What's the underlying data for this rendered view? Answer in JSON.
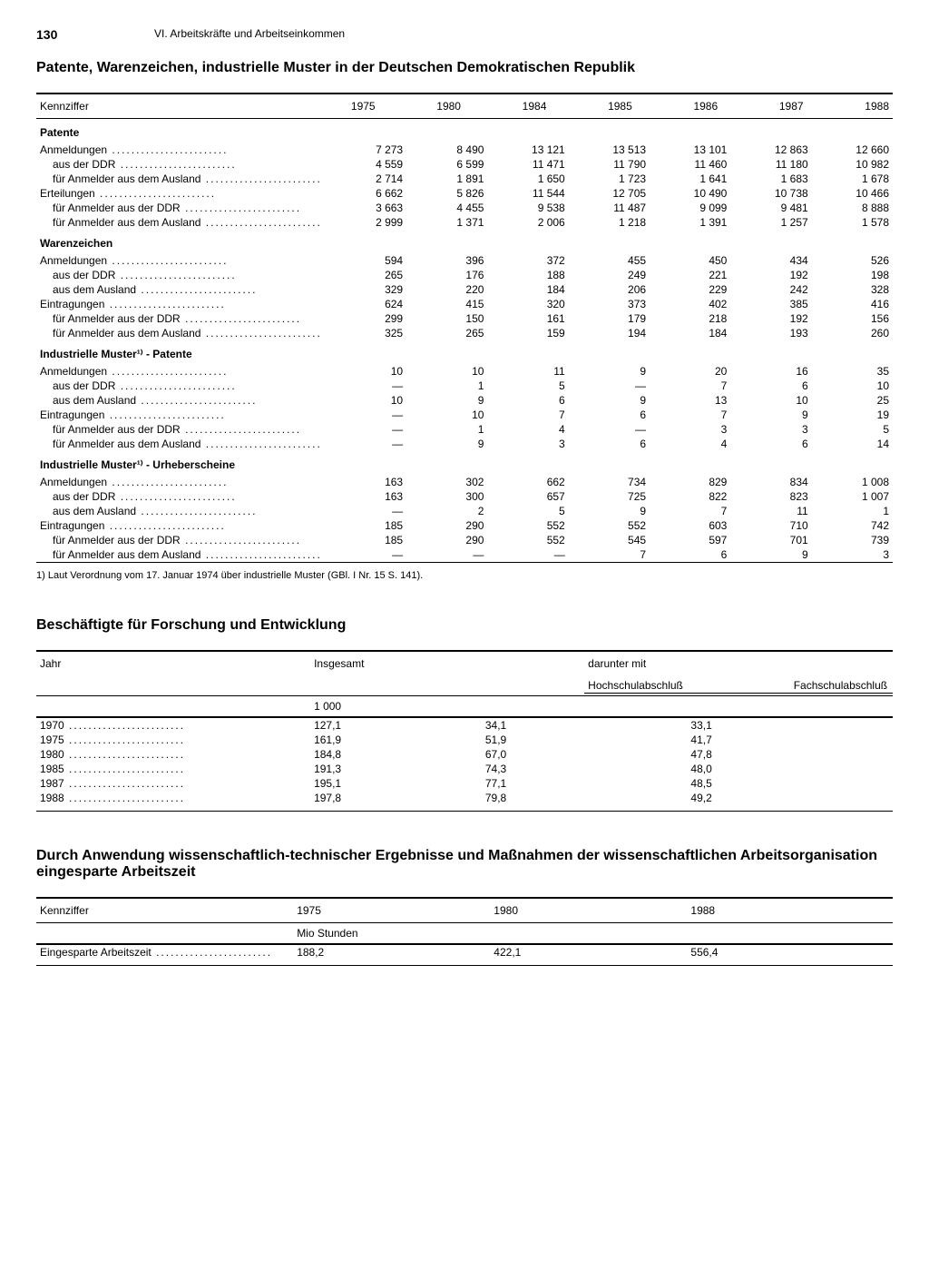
{
  "page": {
    "number": "130",
    "section": "VI. Arbeitskräfte und Arbeitseinkommen"
  },
  "table1": {
    "title": "Patente, Warenzeichen, industrielle Muster in der Deutschen Demokratischen Republik",
    "colhead": "Kennziffer",
    "years": [
      "1975",
      "1980",
      "1984",
      "1985",
      "1986",
      "1987",
      "1988"
    ],
    "groups": [
      {
        "head": "Patente",
        "rows": [
          {
            "l": "Anmeldungen",
            "v": [
              "7 273",
              "8 490",
              "13 121",
              "13 513",
              "13 101",
              "12 863",
              "12 660"
            ]
          },
          {
            "l": "aus der DDR",
            "i": 1,
            "v": [
              "4 559",
              "6 599",
              "11 471",
              "11 790",
              "11 460",
              "11 180",
              "10 982"
            ]
          },
          {
            "l": "für Anmelder aus dem Ausland",
            "i": 1,
            "v": [
              "2 714",
              "1 891",
              "1 650",
              "1 723",
              "1 641",
              "1 683",
              "1 678"
            ]
          },
          {
            "l": "Erteilungen",
            "v": [
              "6 662",
              "5 826",
              "11 544",
              "12 705",
              "10 490",
              "10 738",
              "10 466"
            ]
          },
          {
            "l": "für Anmelder aus der DDR",
            "i": 1,
            "v": [
              "3 663",
              "4 455",
              "9 538",
              "11 487",
              "9 099",
              "9 481",
              "8 888"
            ]
          },
          {
            "l": "für Anmelder aus dem Ausland",
            "i": 1,
            "v": [
              "2 999",
              "1 371",
              "2 006",
              "1 218",
              "1 391",
              "1 257",
              "1 578"
            ]
          }
        ]
      },
      {
        "head": "Warenzeichen",
        "rows": [
          {
            "l": "Anmeldungen",
            "v": [
              "594",
              "396",
              "372",
              "455",
              "450",
              "434",
              "526"
            ]
          },
          {
            "l": "aus der DDR",
            "i": 1,
            "v": [
              "265",
              "176",
              "188",
              "249",
              "221",
              "192",
              "198"
            ]
          },
          {
            "l": "aus dem Ausland",
            "i": 1,
            "v": [
              "329",
              "220",
              "184",
              "206",
              "229",
              "242",
              "328"
            ]
          },
          {
            "l": "Eintragungen",
            "v": [
              "624",
              "415",
              "320",
              "373",
              "402",
              "385",
              "416"
            ]
          },
          {
            "l": "für Anmelder aus der DDR",
            "i": 1,
            "v": [
              "299",
              "150",
              "161",
              "179",
              "218",
              "192",
              "156"
            ]
          },
          {
            "l": "für Anmelder aus dem Ausland",
            "i": 1,
            "v": [
              "325",
              "265",
              "159",
              "194",
              "184",
              "193",
              "260"
            ]
          }
        ]
      },
      {
        "head": "Industrielle Muster¹⁾ - Patente",
        "rows": [
          {
            "l": "Anmeldungen",
            "v": [
              "10",
              "10",
              "11",
              "9",
              "20",
              "16",
              "35"
            ]
          },
          {
            "l": "aus der DDR",
            "i": 1,
            "v": [
              "—",
              "1",
              "5",
              "—",
              "7",
              "6",
              "10"
            ]
          },
          {
            "l": "aus dem Ausland",
            "i": 1,
            "v": [
              "10",
              "9",
              "6",
              "9",
              "13",
              "10",
              "25"
            ]
          },
          {
            "l": "Eintragungen",
            "v": [
              "—",
              "10",
              "7",
              "6",
              "7",
              "9",
              "19"
            ]
          },
          {
            "l": "für Anmelder aus der DDR",
            "i": 1,
            "v": [
              "—",
              "1",
              "4",
              "—",
              "3",
              "3",
              "5"
            ]
          },
          {
            "l": "für Anmelder aus dem Ausland",
            "i": 1,
            "v": [
              "—",
              "9",
              "3",
              "6",
              "4",
              "6",
              "14"
            ]
          }
        ]
      },
      {
        "head": "Industrielle Muster¹⁾ - Urheberscheine",
        "rows": [
          {
            "l": "Anmeldungen",
            "v": [
              "163",
              "302",
              "662",
              "734",
              "829",
              "834",
              "1 008"
            ]
          },
          {
            "l": "aus der DDR",
            "i": 1,
            "v": [
              "163",
              "300",
              "657",
              "725",
              "822",
              "823",
              "1 007"
            ]
          },
          {
            "l": "aus dem Ausland",
            "i": 1,
            "v": [
              "—",
              "2",
              "5",
              "9",
              "7",
              "11",
              "1"
            ]
          },
          {
            "l": "Eintragungen",
            "v": [
              "185",
              "290",
              "552",
              "552",
              "603",
              "710",
              "742"
            ]
          },
          {
            "l": "für Anmelder aus der DDR",
            "i": 1,
            "v": [
              "185",
              "290",
              "552",
              "545",
              "597",
              "701",
              "739"
            ]
          },
          {
            "l": "für Anmelder aus dem Ausland",
            "i": 1,
            "v": [
              "—",
              "—",
              "—",
              "7",
              "6",
              "9",
              "3"
            ]
          }
        ]
      }
    ],
    "footnote": "1) Laut Verordnung vom 17. Januar 1974 über industrielle Muster (GBl. I Nr. 15 S. 141)."
  },
  "table2": {
    "title": "Beschäftigte für Forschung und Entwicklung",
    "col_year": "Jahr",
    "col_total": "Insgesamt",
    "col_group": "darunter mit",
    "col_a": "Hochschulabschluß",
    "col_b": "Fachschulabschluß",
    "unit": "1 000",
    "rows": [
      {
        "y": "1970",
        "t": "127,1",
        "a": "34,1",
        "b": "33,1"
      },
      {
        "y": "1975",
        "t": "161,9",
        "a": "51,9",
        "b": "41,7"
      },
      {
        "y": "1980",
        "t": "184,8",
        "a": "67,0",
        "b": "47,8"
      },
      {
        "y": "1985",
        "t": "191,3",
        "a": "74,3",
        "b": "48,0"
      },
      {
        "y": "1987",
        "t": "195,1",
        "a": "77,1",
        "b": "48,5"
      },
      {
        "y": "1988",
        "t": "197,8",
        "a": "79,8",
        "b": "49,2"
      }
    ]
  },
  "table3": {
    "title": "Durch Anwendung wissenschaftlich-technischer Ergebnisse und Maßnahmen der wissenschaftlichen Arbeitsorganisation eingesparte Arbeitszeit",
    "colhead": "Kennziffer",
    "years": [
      "1975",
      "1980",
      "1988"
    ],
    "unit": "Mio Stunden",
    "row_label": "Eingesparte Arbeitszeit",
    "values": [
      "188,2",
      "422,1",
      "556,4"
    ]
  }
}
